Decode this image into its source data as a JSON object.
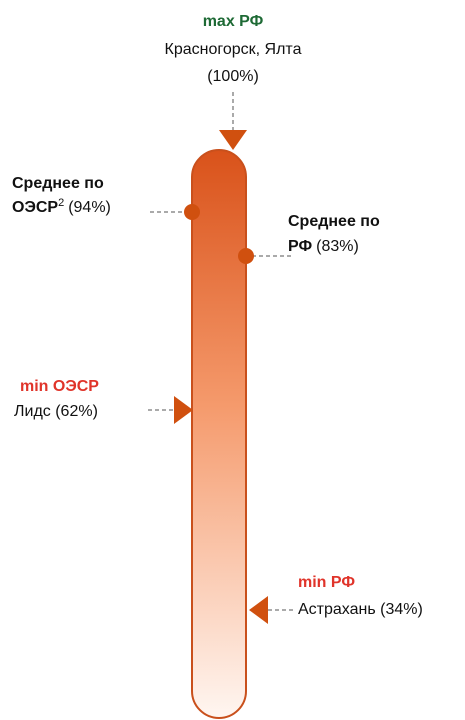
{
  "markers": [
    {
      "title": "max РФ",
      "lines": [
        "Красногорск, Ялта",
        "(100%)"
      ]
    },
    {
      "title": [
        "Среднее по",
        "ОЭСР"
      ],
      "sup": "2",
      "value": "(94%)"
    },
    {
      "title": [
        "Среднее по",
        "РФ"
      ],
      "value": "(83%)"
    },
    {
      "title": "min ОЭСР",
      "lines": [
        "Лидс (62%)"
      ]
    },
    {
      "title": "min РФ",
      "lines": [
        "Астрахань (34%)"
      ]
    }
  ]
}
